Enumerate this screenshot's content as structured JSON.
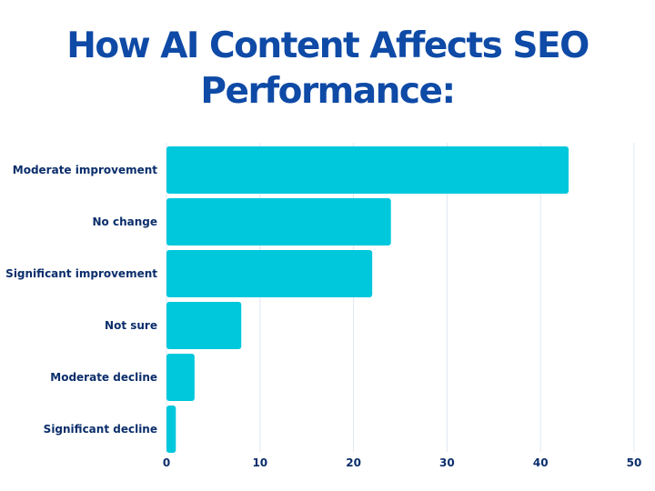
{
  "title": "How AI Content Affects SEO Performance:",
  "colors": {
    "title": "#0e4aa6",
    "bar": "#00c8dc",
    "label": "#0b2e6b",
    "grid": "#dde8f1"
  },
  "chart_data": {
    "type": "bar",
    "orientation": "horizontal",
    "title": "How AI Content Affects SEO Performance:",
    "xlabel": "",
    "ylabel": "",
    "categories": [
      "Moderate improvement",
      "No change",
      "Significant improvement",
      "Not sure",
      "Moderate decline",
      "Significant decline"
    ],
    "values": [
      43,
      24,
      22,
      8,
      3,
      1
    ],
    "xlim": [
      0,
      50
    ],
    "xticks": [
      0,
      10,
      20,
      30,
      40,
      50
    ],
    "grid": "vertical",
    "legend": "none"
  }
}
